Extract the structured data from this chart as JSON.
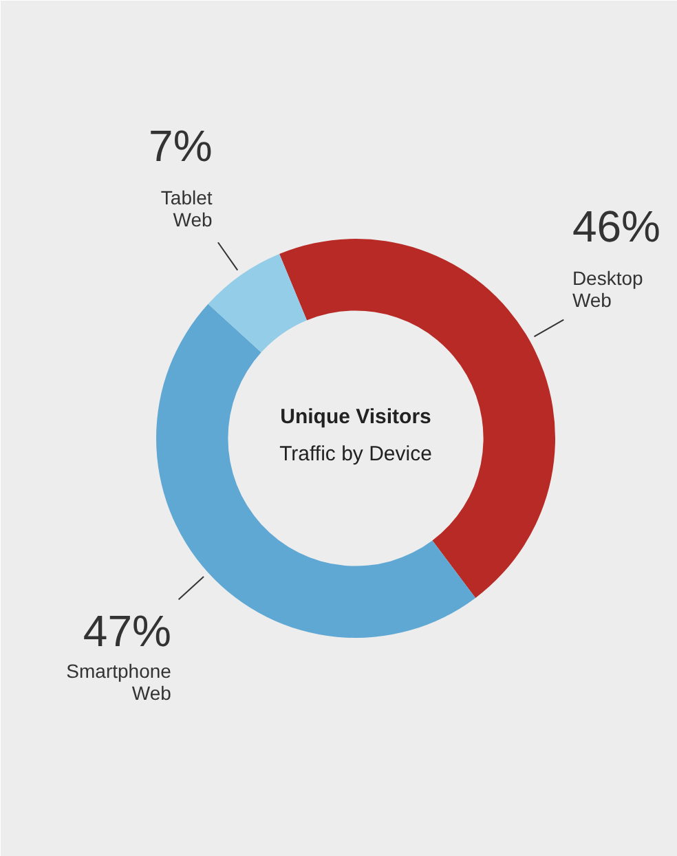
{
  "chart_data": {
    "type": "donut",
    "title": "Unique Visitors",
    "subtitle": "Traffic by Device",
    "categories": [
      "Desktop Web",
      "Smartphone Web",
      "Tablet Web"
    ],
    "values": [
      46,
      47,
      7
    ],
    "value_labels": [
      "46%",
      "47%",
      "7%"
    ],
    "colors": [
      "#b82a25",
      "#5fa8d3",
      "#94cde8"
    ]
  }
}
